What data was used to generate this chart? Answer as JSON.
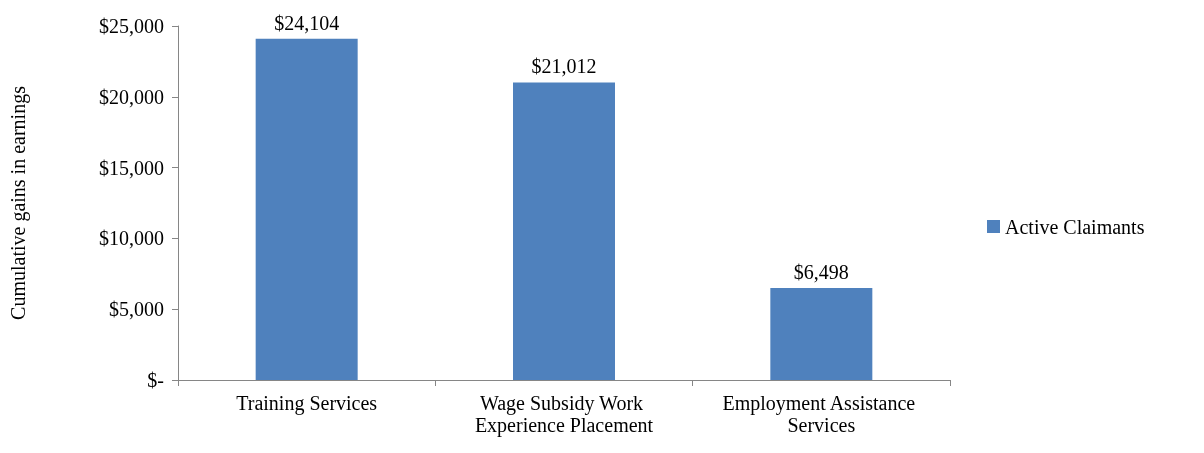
{
  "chart_data": {
    "type": "bar",
    "ylabel": "Cumulative gains in earnings",
    "categories": [
      "Training Services",
      "Wage Subsidy Work Experience Placement",
      "Employment Assistance Services"
    ],
    "series": [
      {
        "name": "Active Claimants",
        "color": "#4f81bd",
        "values": [
          24104,
          21012,
          6498
        ],
        "value_labels": [
          "$24,104",
          "$21,012",
          "$6,498"
        ]
      }
    ],
    "ylim": [
      0,
      25000
    ],
    "yticks": [
      {
        "value": 0,
        "label": "$-"
      },
      {
        "value": 5000,
        "label": "$5,000"
      },
      {
        "value": 10000,
        "label": "$10,000"
      },
      {
        "value": 15000,
        "label": "$15,000"
      },
      {
        "value": 20000,
        "label": "$20,000"
      },
      {
        "value": 25000,
        "label": "$25,000"
      }
    ],
    "legend": "right"
  }
}
